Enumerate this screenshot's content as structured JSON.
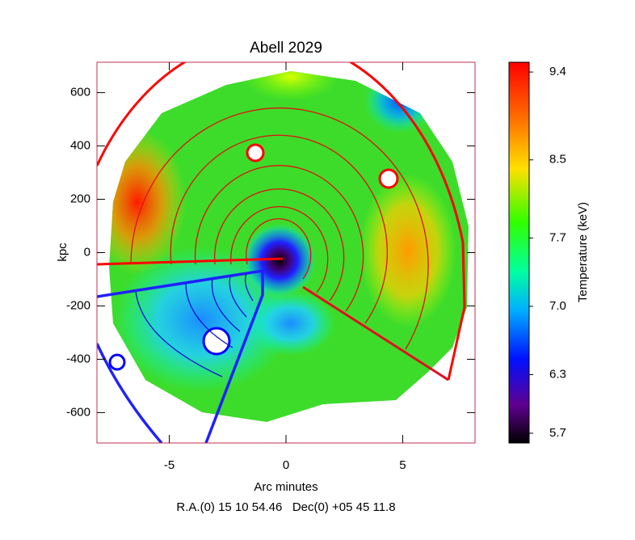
{
  "chart_data": {
    "type": "heatmap",
    "title": "Abell 2029",
    "x_label": "Arc minutes",
    "coordinates_label": "R.A.(0) 15 10 54.46   Dec(0) +05 45 11.8",
    "y_label": "kpc",
    "xlim": [
      -8.1,
      8.1
    ],
    "xticks": [
      -5,
      0,
      5
    ],
    "ylim": [
      -714,
      714
    ],
    "yticks": [
      600,
      400,
      200,
      0,
      -200,
      -400,
      -600
    ],
    "colorbar": {
      "label": "Temperature (keV)",
      "lim": [
        5.6,
        9.5
      ],
      "ticks": [
        9.4,
        8.5,
        7.7,
        {
          "value": 7,
          "label": "7.0"
        },
        6.3,
        5.7
      ]
    }
  }
}
